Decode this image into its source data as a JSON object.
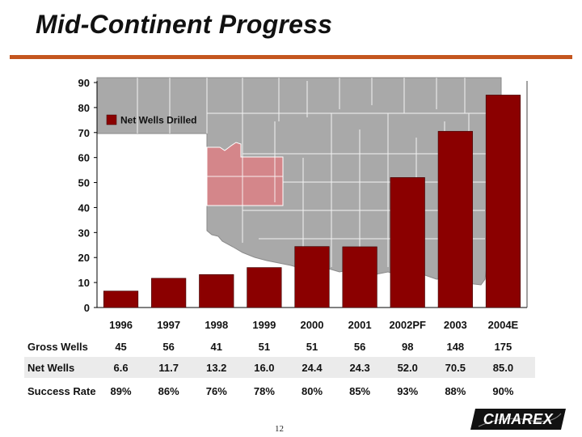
{
  "title": "Mid-Continent Progress",
  "page_number": "12",
  "logo_text": "CIMAREX",
  "colors": {
    "bar": "#8b0000",
    "accent_rule": "#c4561f",
    "map_fill": "#a9a9a9",
    "map_lines": "#ffffff",
    "highlight": "#d4868a"
  },
  "chart_data": {
    "type": "bar",
    "title": "",
    "xlabel": "",
    "ylabel": "",
    "ylim": [
      0,
      90
    ],
    "yticks": [
      0,
      10,
      20,
      30,
      40,
      50,
      60,
      70,
      80,
      90
    ],
    "categories": [
      "1996",
      "1997",
      "1998",
      "1999",
      "2000",
      "2001",
      "2002PF",
      "2003",
      "2004E"
    ],
    "series": [
      {
        "name": "Net Wells Drilled",
        "values": [
          6.6,
          11.7,
          13.2,
          16.0,
          24.4,
          24.3,
          52.0,
          70.5,
          85.0
        ]
      }
    ],
    "legend": {
      "label": "Net Wells Drilled",
      "position": "top-left"
    },
    "background": "map of Oklahoma counties"
  },
  "table": {
    "rows": [
      {
        "label": "Gross Wells",
        "values": [
          "45",
          "56",
          "41",
          "51",
          "51",
          "56",
          "98",
          "148",
          "175"
        ],
        "shaded": false
      },
      {
        "label": "Net Wells",
        "values": [
          "6.6",
          "11.7",
          "13.2",
          "16.0",
          "24.4",
          "24.3",
          "52.0",
          "70.5",
          "85.0"
        ],
        "shaded": true
      },
      {
        "label": "Success Rate",
        "values": [
          "89%",
          "86%",
          "76%",
          "78%",
          "80%",
          "85%",
          "93%",
          "88%",
          "90%"
        ],
        "shaded": false
      }
    ]
  }
}
